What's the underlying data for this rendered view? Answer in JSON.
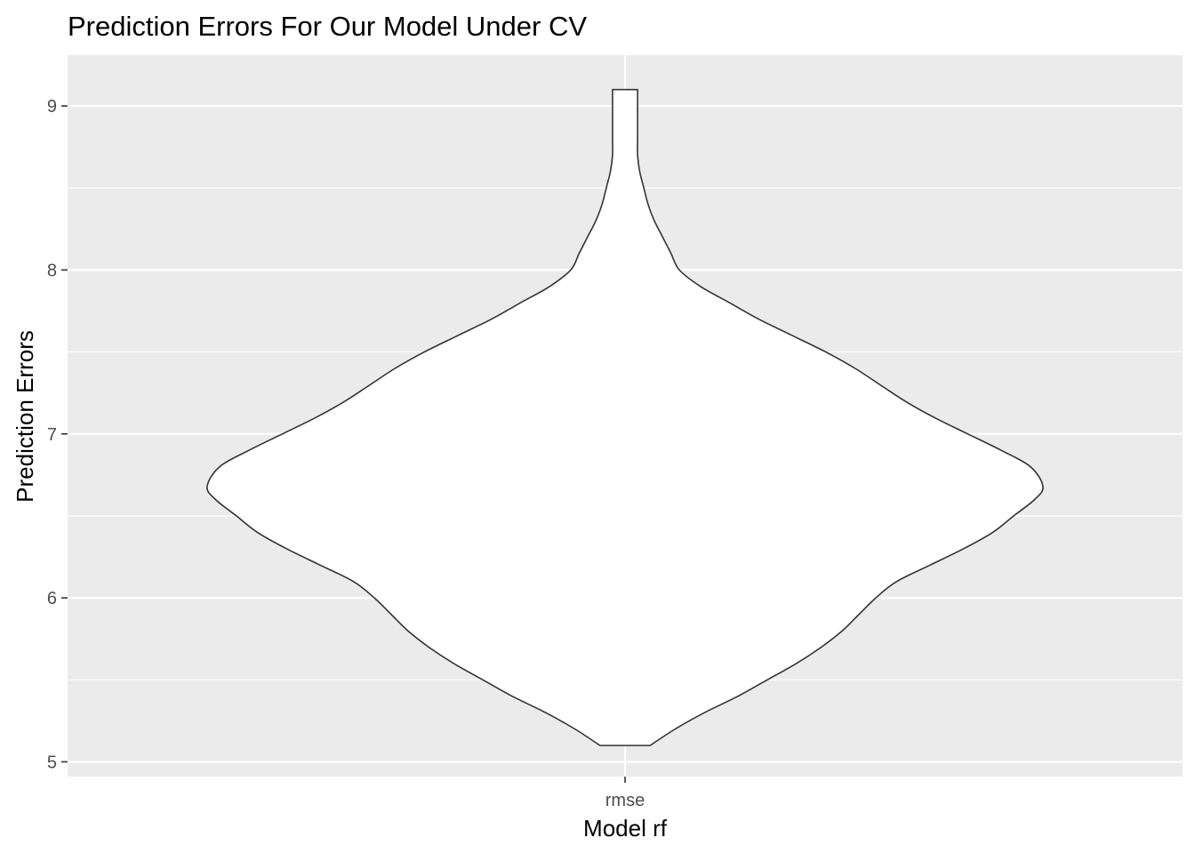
{
  "chart_data": {
    "type": "violin",
    "title": "Prediction Errors For Our Model Under CV",
    "xlabel": "Model rf",
    "ylabel": "Prediction Errors",
    "categories": [
      "rmse"
    ],
    "ylim": [
      4.91,
      9.31
    ],
    "y_ticks": [
      5,
      6,
      7,
      8,
      9
    ],
    "y_minor_ticks": [
      5.5,
      6.5,
      7.5,
      8.5
    ],
    "grid": true,
    "legend": "none",
    "colors": {
      "panel": "#EBEBEB",
      "grid_major": "#FFFFFF",
      "grid_minor": "#FFFFFF",
      "violin_fill": "#FFFFFF",
      "violin_outline": "#333333",
      "tick_text": "#4D4D4D",
      "title_text": "#000000"
    },
    "series": [
      {
        "category": "rmse",
        "y_range": [
          5.1,
          9.1
        ],
        "density_profile": {
          "y": [
            5.1,
            5.2,
            5.3,
            5.4,
            5.5,
            5.6,
            5.7,
            5.8,
            5.9,
            6.0,
            6.1,
            6.2,
            6.3,
            6.4,
            6.5,
            6.6,
            6.68,
            6.8,
            6.9,
            7.0,
            7.1,
            7.2,
            7.3,
            7.4,
            7.5,
            7.6,
            7.7,
            7.8,
            7.9,
            8.0,
            8.1,
            8.2,
            8.3,
            8.4,
            8.5,
            8.6,
            8.7,
            8.8,
            8.9,
            9.0,
            9.1
          ],
          "width": [
            0.06,
            0.12,
            0.19,
            0.27,
            0.34,
            0.41,
            0.47,
            0.52,
            0.56,
            0.6,
            0.65,
            0.73,
            0.81,
            0.88,
            0.93,
            0.98,
            1.0,
            0.97,
            0.9,
            0.82,
            0.74,
            0.67,
            0.61,
            0.55,
            0.48,
            0.4,
            0.32,
            0.25,
            0.18,
            0.13,
            0.11,
            0.09,
            0.07,
            0.055,
            0.045,
            0.035,
            0.03,
            0.03,
            0.03,
            0.03,
            0.03
          ]
        }
      }
    ]
  }
}
